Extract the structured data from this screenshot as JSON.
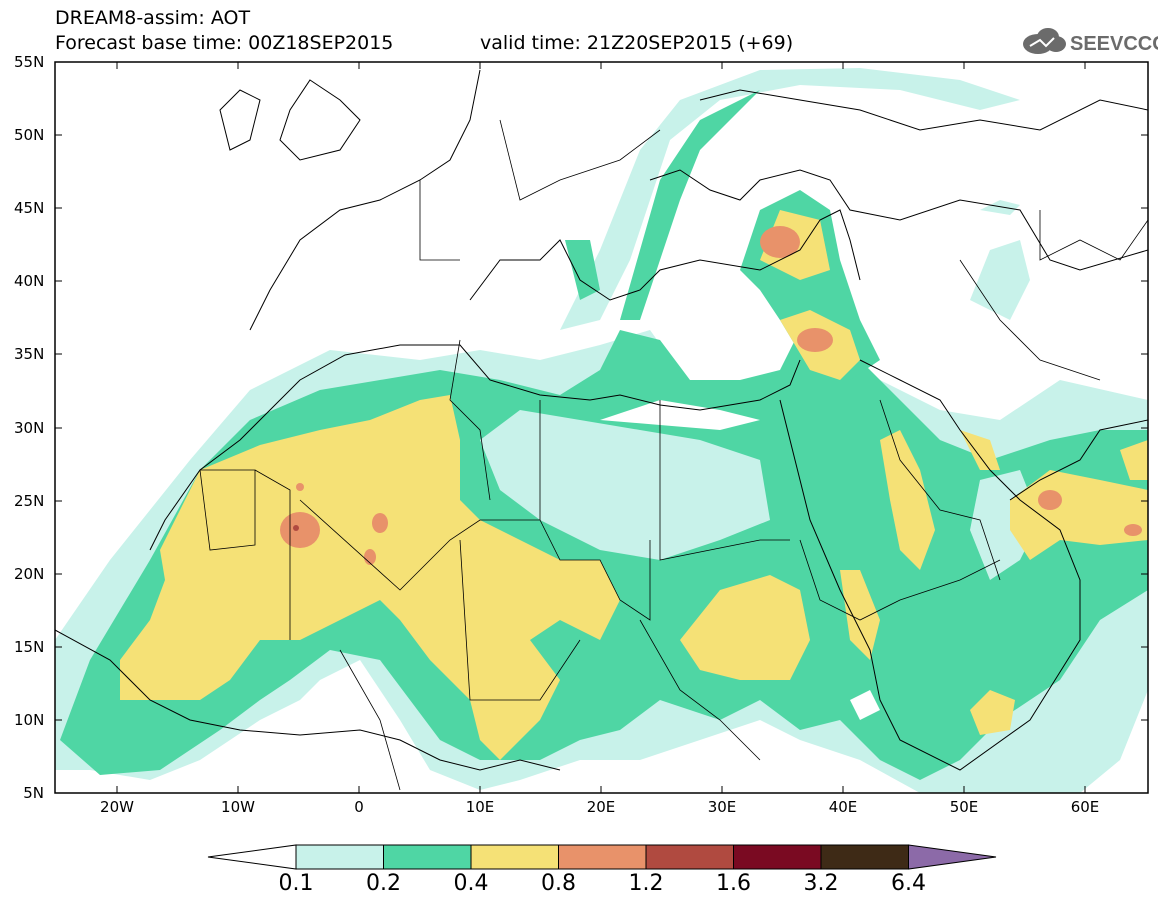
{
  "header": {
    "title_line1": "DREAM8-assim: AOT",
    "base_time_label": "Forecast base time: 00Z18SEP2015",
    "valid_time_label": "valid time: 21Z20SEP2015 (+69)",
    "logo_text": "SEEVCCC"
  },
  "map": {
    "lat_labels": [
      "55N",
      "50N",
      "45N",
      "40N",
      "35N",
      "30N",
      "25N",
      "20N",
      "15N",
      "10N",
      "5N"
    ],
    "lon_labels": [
      "20W",
      "10W",
      "0",
      "10E",
      "20E",
      "30E",
      "40E",
      "50E",
      "60E"
    ],
    "colors": {
      "level_0.1": "#c8f2ea",
      "level_0.2": "#4fd6a4",
      "level_0.4": "#f5e176",
      "level_0.8": "#e8926a",
      "level_1.2": "#b04a40",
      "coastline": "#000000"
    }
  },
  "colorbar": {
    "labels": [
      "0.1",
      "0.2",
      "0.4",
      "0.8",
      "1.2",
      "1.6",
      "3.2",
      "6.4"
    ],
    "colors": [
      "#ffffff",
      "#c8f2ea",
      "#4fd6a4",
      "#f5e176",
      "#e8926a",
      "#b04a40",
      "#7a0a22",
      "#3e2a16",
      "#8c6aa8"
    ]
  }
}
